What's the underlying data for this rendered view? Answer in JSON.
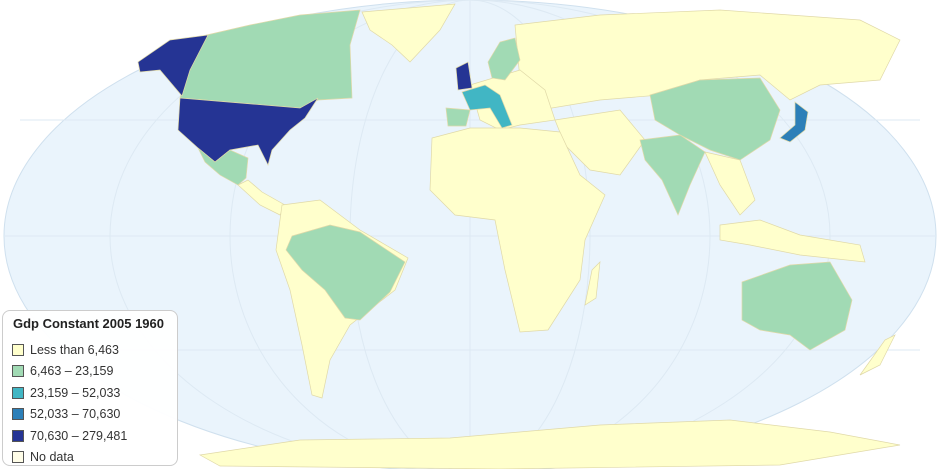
{
  "legend": {
    "title": "Gdp Constant 2005 1960",
    "items": [
      {
        "label": "Less than 6,463",
        "color": "#ffffcc"
      },
      {
        "label": "6,463 – 23,159",
        "color": "#a1dab4"
      },
      {
        "label": "23,159 – 52,033",
        "color": "#41b6c4"
      },
      {
        "label": "52,033 – 70,630",
        "color": "#2c7fb8"
      },
      {
        "label": "70,630 – 279,481",
        "color": "#253494"
      },
      {
        "label": "No data",
        "color": "#fffde8"
      }
    ]
  },
  "colors": {
    "ocean": "#eaf4fc",
    "border": "#d6e6f2"
  }
}
